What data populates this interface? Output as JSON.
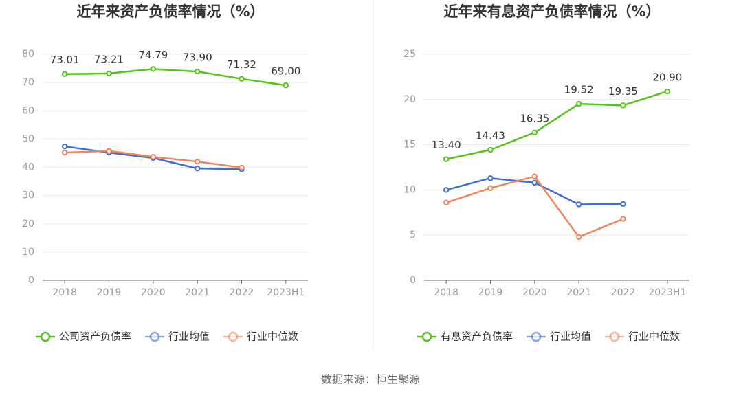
{
  "chart_data": [
    {
      "type": "line",
      "title": "近年来资产负债率情况（%）",
      "categories": [
        "2018",
        "2019",
        "2020",
        "2021",
        "2022",
        "2023H1"
      ],
      "ylim": [
        0,
        80
      ],
      "yticks": [
        0,
        10,
        20,
        30,
        40,
        50,
        60,
        70,
        80
      ],
      "grid": true,
      "legend": "bottom",
      "series": [
        {
          "name": "公司资产负债率",
          "color": "#52c41a",
          "values": [
            73.01,
            73.21,
            74.79,
            73.9,
            71.32,
            69.0
          ],
          "value_labels": [
            "73.01",
            "73.21",
            "74.79",
            "73.90",
            "71.32",
            "69.00"
          ]
        },
        {
          "name": "行业均值",
          "color": "#3a6fd8",
          "values": [
            47.4,
            45.2,
            43.3,
            39.6,
            39.3,
            null
          ]
        },
        {
          "name": "行业中位数",
          "color": "#f0855a",
          "values": [
            45.2,
            45.8,
            43.7,
            42.0,
            39.9,
            null
          ]
        }
      ]
    },
    {
      "type": "line",
      "title": "近年来有息资产负债率情况（%）",
      "categories": [
        "2018",
        "2019",
        "2020",
        "2021",
        "2022",
        "2023H1"
      ],
      "ylim": [
        0,
        25
      ],
      "yticks": [
        0,
        5,
        10,
        15,
        20,
        25
      ],
      "grid": true,
      "legend": "bottom",
      "series": [
        {
          "name": "有息资产负债率",
          "color": "#52c41a",
          "values": [
            13.4,
            14.43,
            16.35,
            19.52,
            19.35,
            20.9
          ],
          "value_labels": [
            "13.40",
            "14.43",
            "16.35",
            "19.52",
            "19.35",
            "20.90"
          ]
        },
        {
          "name": "行业均值",
          "color": "#3a6fd8",
          "values": [
            10.0,
            11.3,
            10.8,
            8.4,
            8.45,
            null
          ]
        },
        {
          "name": "行业中位数",
          "color": "#f0855a",
          "values": [
            8.6,
            10.2,
            11.5,
            4.8,
            6.8,
            null
          ]
        }
      ]
    }
  ],
  "source": "数据来源：恒生聚源"
}
